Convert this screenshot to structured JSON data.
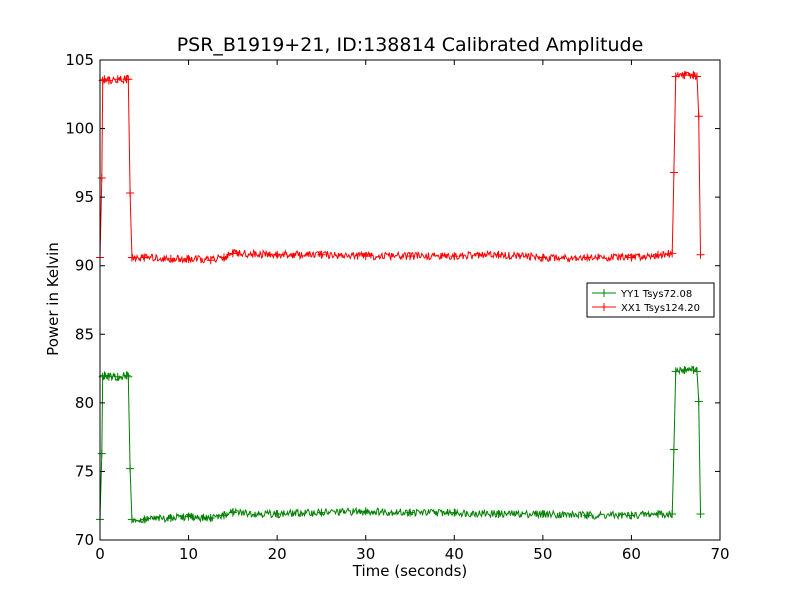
{
  "chart_data": {
    "type": "line",
    "title": "PSR_B1919+21, ID:138814 Calibrated Amplitude",
    "xlabel": "Time (seconds)",
    "ylabel": "Power in Kelvin",
    "xlim": [
      0,
      70
    ],
    "ylim": [
      70,
      105
    ],
    "xticks": [
      "0",
      "10",
      "20",
      "30",
      "40",
      "50",
      "60",
      "70"
    ],
    "yticks": [
      "70",
      "75",
      "80",
      "85",
      "90",
      "95",
      "100",
      "105"
    ],
    "grid": false,
    "legend_position": "right",
    "series": [
      {
        "name": "YY1 Tsys72.08",
        "color": "#008000",
        "x": [
          0,
          0.2,
          0.3,
          0.5,
          1.0,
          2.0,
          3.0,
          3.2,
          3.4,
          3.6,
          5.0,
          8.0,
          10.0,
          12.5,
          14.0,
          15.0,
          20.0,
          25.0,
          30.0,
          35.0,
          40.0,
          45.0,
          50.0,
          55.0,
          60.0,
          63.0,
          64.6,
          64.8,
          65.0,
          66.0,
          67.0,
          67.4,
          67.6,
          67.8
        ],
        "values": [
          71.5,
          76.3,
          81.9,
          82.0,
          81.9,
          81.9,
          82.0,
          81.9,
          75.2,
          71.5,
          71.5,
          71.6,
          71.7,
          71.6,
          71.8,
          72.0,
          71.9,
          72.0,
          72.1,
          72.0,
          72.0,
          71.9,
          71.9,
          71.8,
          71.8,
          71.9,
          71.9,
          76.6,
          82.3,
          82.4,
          82.4,
          82.3,
          80.1,
          71.9
        ]
      },
      {
        "name": "XX1 Tsys124.20",
        "color": "#ff0000",
        "x": [
          0,
          0.2,
          0.3,
          0.5,
          1.0,
          2.0,
          3.0,
          3.2,
          3.4,
          3.6,
          5.0,
          8.0,
          10.0,
          12.5,
          14.0,
          15.0,
          20.0,
          25.0,
          30.0,
          35.0,
          40.0,
          45.0,
          50.0,
          55.0,
          60.0,
          63.0,
          64.6,
          64.8,
          65.0,
          66.0,
          67.0,
          67.4,
          67.6,
          67.8
        ],
        "values": [
          90.6,
          96.4,
          103.5,
          103.6,
          103.5,
          103.6,
          103.6,
          103.6,
          95.3,
          90.6,
          90.6,
          90.5,
          90.5,
          90.4,
          90.6,
          90.9,
          90.8,
          90.8,
          90.7,
          90.7,
          90.7,
          90.8,
          90.6,
          90.6,
          90.6,
          90.8,
          90.9,
          96.8,
          103.8,
          103.9,
          103.9,
          103.8,
          100.9,
          90.8
        ]
      }
    ]
  }
}
